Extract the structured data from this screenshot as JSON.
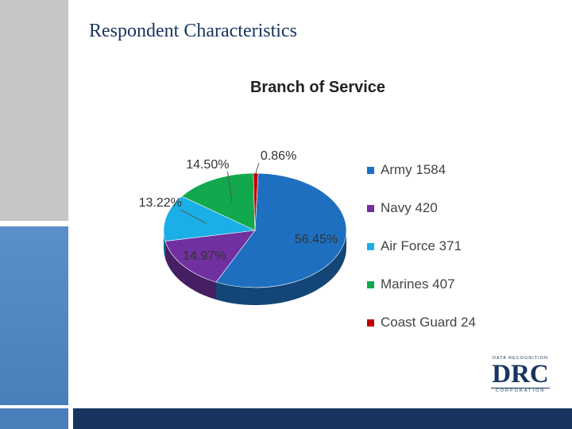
{
  "slide": {
    "title": "Respondent Characteristics"
  },
  "logo": {
    "top_text": "DATA RECOGNITION",
    "main_text": "DRC",
    "bottom_text": "CORPORATION"
  },
  "chart_data": {
    "type": "pie",
    "title": "Branch of Service",
    "legend_position": "right",
    "slices": [
      {
        "name": "Army",
        "value": 1584,
        "legend": "Army 1584",
        "percent_label": "56.45%",
        "color": "#1f6fc0"
      },
      {
        "name": "Navy",
        "value": 420,
        "legend": "Navy 420",
        "percent_label": "14.97%",
        "color": "#7030a0"
      },
      {
        "name": "Air Force",
        "value": 371,
        "legend": "Air Force 371",
        "percent_label": "13.22%",
        "color": "#1aafe6"
      },
      {
        "name": "Marines",
        "value": 407,
        "legend": "Marines 407",
        "percent_label": "14.50%",
        "color": "#12a84e"
      },
      {
        "name": "Coast Guard",
        "value": 24,
        "legend": "Coast Guard 24",
        "percent_label": "0.86%",
        "color": "#c00000"
      }
    ]
  }
}
